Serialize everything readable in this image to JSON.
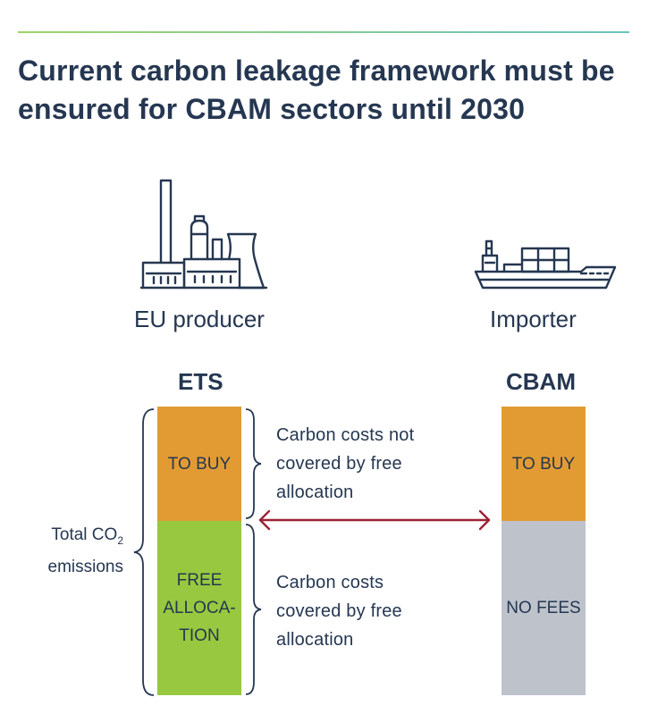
{
  "title": "Current carbon leakage framework must be ensured for CBAM sectors until 2030",
  "producer": {
    "label": "EU producer",
    "icon": "factory-icon",
    "column_header": "ETS",
    "to_buy_label": "TO BUY",
    "free_allocation_lines": [
      "FREE",
      "ALLOCA-",
      "TION"
    ]
  },
  "importer": {
    "label": "Importer",
    "icon": "cargo-ship-icon",
    "column_header": "CBAM",
    "to_buy_label": "TO BUY",
    "no_fees_label": "NO FEES"
  },
  "total_emissions": {
    "line1": "Total CO",
    "subscript": "2",
    "line2": "emissions"
  },
  "descriptions": {
    "not_covered": [
      "Carbon costs not",
      "covered by free",
      "allocation"
    ],
    "covered": [
      "Carbon costs",
      "covered by free",
      "allocation"
    ]
  },
  "colors": {
    "to_buy": "#e29b33",
    "free_allocation": "#97c83f",
    "no_fees": "#bdc2cb",
    "arrow": "#9b2335",
    "text": "#253751"
  }
}
